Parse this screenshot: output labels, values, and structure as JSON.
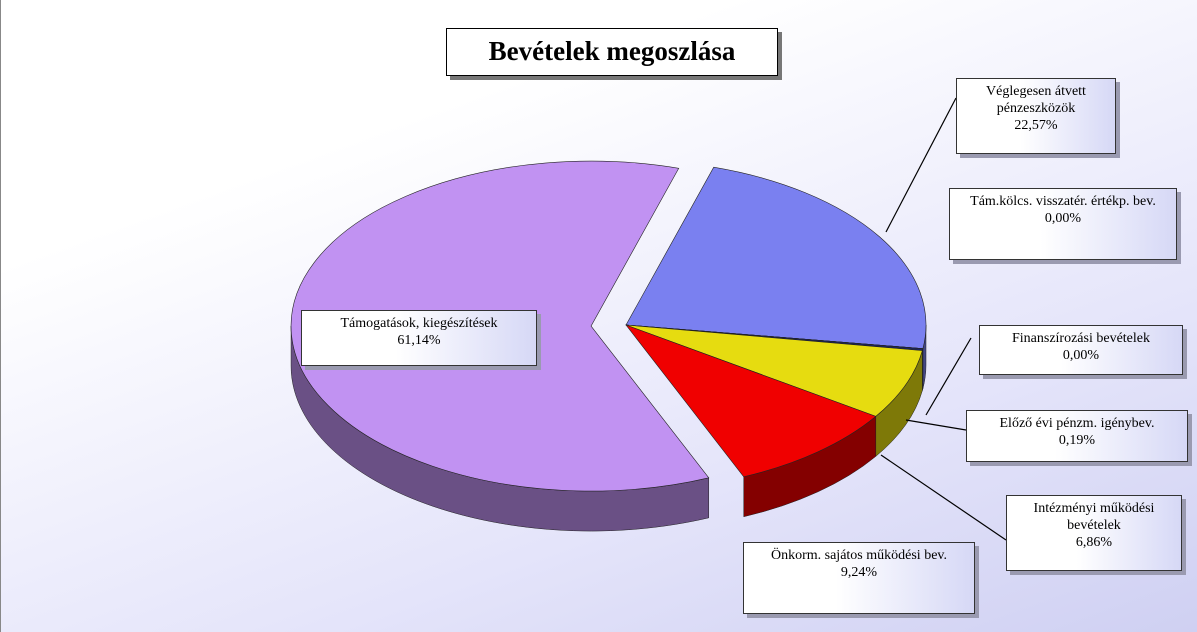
{
  "chart_data": {
    "type": "pie",
    "title": "Bevételek megoszlása",
    "categories": [
      "Véglegesen átvett pénzeszközök",
      "Tám.kölcs. visszatér. értékp. bev.",
      "Finanszírozási bevételek",
      "Előző évi pénzm. igénybev.",
      "Intézményi működési bevételek",
      "Önkorm. sajátos működési bev.",
      "Támogatások, kiegészítések"
    ],
    "values": [
      22.57,
      0.0,
      0.0,
      0.19,
      6.86,
      9.24,
      61.14
    ],
    "value_labels": [
      "22,57%",
      "0,00%",
      "0,00%",
      "0,19%",
      "6,86%",
      "9,24%",
      "61,14%"
    ],
    "colors": [
      "#7a80f0",
      "#5060d0",
      "#3040a0",
      "#1c2460",
      "#e6dc10",
      "#f00000",
      "#c192f2"
    ]
  }
}
